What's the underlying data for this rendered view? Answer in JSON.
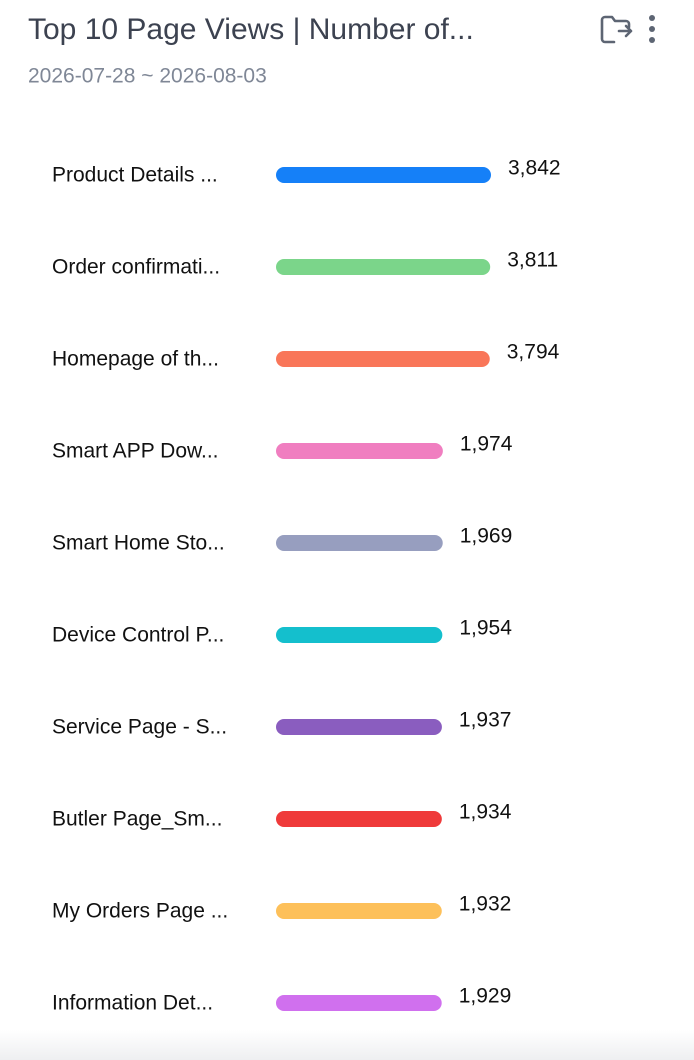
{
  "chart_data": {
    "type": "bar",
    "orientation": "horizontal",
    "title": "Top 10 Page Views | Number of...",
    "subtitle": "2026-07-28 ~ 2026-08-03",
    "categories": [
      "Product Details ...",
      "Order confirmati...",
      "Homepage of th...",
      "Smart APP Dow...",
      "Smart Home Sto...",
      "Device Control P...",
      "Service Page - S...",
      "Butler Page_Sm...",
      "My Orders Page ...",
      "Information Det..."
    ],
    "values": [
      3842,
      3811,
      3794,
      1974,
      1969,
      1954,
      1937,
      1934,
      1932,
      1929
    ],
    "value_labels": [
      "3,842",
      "3,811",
      "3,794",
      "1,974",
      "1,969",
      "1,954",
      "1,937",
      "1,934",
      "1,932",
      "1,929"
    ],
    "colors": [
      "#1580f8",
      "#7bd58a",
      "#f97659",
      "#f07ec0",
      "#979ebf",
      "#14bfcd",
      "#8a5dbf",
      "#ef3a3a",
      "#fdc05a",
      "#d070ee"
    ]
  }
}
